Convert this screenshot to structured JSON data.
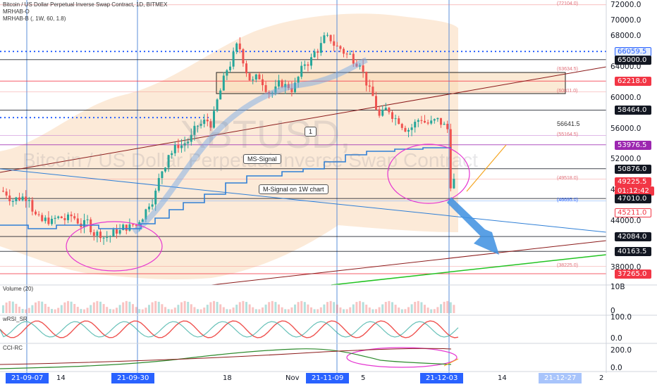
{
  "header": {
    "title": "Bitcoin / US Dollar Perpetual Inverse Swap Contract, 1D, BITMEX",
    "ind1": "MRHAB-O",
    "ind2": "MRHAB-B (, 1W, 60, 1.8)"
  },
  "watermark": {
    "symbol": "XBTUSD,",
    "name": "Bitcoin / US Dollar Perpetual Inverse Swap Contract"
  },
  "callouts": {
    "ms_signal": "MS-Signal",
    "m_signal": "M-Signal on 1W chart",
    "marker": "1"
  },
  "panes": {
    "volume": "Volume (20)",
    "wrsi": "wRSI_SR",
    "cci": "CCI-RC"
  },
  "y_ticks": [
    "72000.0",
    "70000.0",
    "68000.0",
    "64000.0",
    "60000.0",
    "56000.0",
    "52000.0",
    "48000.0",
    "44000.0",
    "38000.0"
  ],
  "level_notes": [
    "(72104.0)",
    "(63634.5)",
    "(60811.0)",
    "(55164.5)",
    "(49518.0)",
    "(46695.0)",
    "(38225.0)",
    "56641.5"
  ],
  "price_tags": [
    {
      "label": "66059.5",
      "bg": "#e3ecfd",
      "fg": "#2962ff",
      "border": "#2962ff"
    },
    {
      "label": "65000.0",
      "bg": "#131722",
      "fg": "#ffffff",
      "border": "#131722"
    },
    {
      "label": "62218.0",
      "bg": "#f23645",
      "fg": "#ffffff",
      "border": "#f23645"
    },
    {
      "label": "58464.0",
      "bg": "#131722",
      "fg": "#ffffff",
      "border": "#131722"
    },
    {
      "label": "53976.5",
      "bg": "#9c27b0",
      "fg": "#ffffff",
      "border": "#9c27b0"
    },
    {
      "label": "50876.0",
      "bg": "#131722",
      "fg": "#ffffff",
      "border": "#131722"
    },
    {
      "label": "49225.5",
      "bg": "#f23645",
      "fg": "#ffffff",
      "border": "#f23645"
    },
    {
      "label": "01:12:42",
      "bg": "#f23645",
      "fg": "#ffffff",
      "border": "#f23645"
    },
    {
      "label": "47010.0",
      "bg": "#131722",
      "fg": "#ffffff",
      "border": "#131722"
    },
    {
      "label": "45211.0",
      "bg": "#ffffff",
      "fg": "#f23645",
      "border": "#f23645"
    },
    {
      "label": "42084.0",
      "bg": "#131722",
      "fg": "#ffffff",
      "border": "#131722"
    },
    {
      "label": "40163.5",
      "bg": "#131722",
      "fg": "#ffffff",
      "border": "#131722"
    },
    {
      "label": "37265.0",
      "bg": "#f23645",
      "fg": "#ffffff",
      "border": "#f23645"
    }
  ],
  "pane_ticks": {
    "volume": "10B",
    "volume_zero": "0",
    "wrsi_top": "100.0",
    "wrsi_zero": "0.0",
    "cci_top": "200.0",
    "cci_zero": "0.0"
  },
  "x_ticks": [
    {
      "label": "21-09-07",
      "highlight": true
    },
    {
      "label": "14",
      "highlight": false
    },
    {
      "label": "21-09-30",
      "highlight": true
    },
    {
      "label": "18",
      "highlight": false
    },
    {
      "label": "Nov",
      "highlight": false
    },
    {
      "label": "21-11-09",
      "highlight": true
    },
    {
      "label": "5",
      "highlight": false
    },
    {
      "label": "21-12-03",
      "highlight": true
    },
    {
      "label": "14",
      "highlight": false
    },
    {
      "label": "21-12-27",
      "highlight": true
    },
    {
      "label": "2",
      "highlight": false
    }
  ],
  "colors": {
    "up": "#26a69a",
    "down": "#ef5350",
    "signal": "#2f7fd6",
    "vline": "#5b8fd9",
    "annotation": "#e535d1",
    "trend_dark": "#8b1a1a",
    "trend_green": "#22c322",
    "band": "#f7c48f"
  },
  "chart_data": {
    "type": "candlestick",
    "title": "Bitcoin / US Dollar Perpetual Inverse Swap Contract, 1D, BITMEX",
    "ylim": [
      37000,
      73000
    ],
    "x": [
      "2021-09-01",
      "2021-09-07",
      "2021-09-14",
      "2021-09-21",
      "2021-09-30",
      "2021-10-07",
      "2021-10-14",
      "2021-10-21",
      "2021-10-28",
      "2021-11-04",
      "2021-11-09",
      "2021-11-16",
      "2021-11-23",
      "2021-11-30",
      "2021-12-03"
    ],
    "close": [
      48500,
      46500,
      47500,
      43500,
      43800,
      53500,
      57800,
      62500,
      61200,
      61500,
      66500,
      61000,
      56500,
      57500,
      49225
    ],
    "series": [
      {
        "name": "MS-Signal",
        "values": [
          48000,
          45500,
          45800,
          44500,
          43200,
          46500,
          52000,
          56500,
          59500,
          61000,
          63000,
          61500,
          59000,
          57000,
          55000
        ]
      },
      {
        "name": "M-Signal on 1W chart",
        "values": [
          46000,
          45000,
          44300,
          44000,
          44200,
          44800,
          46500,
          48500,
          50500,
          52000,
          52800,
          53300,
          53700,
          54000,
          54200
        ]
      }
    ]
  }
}
